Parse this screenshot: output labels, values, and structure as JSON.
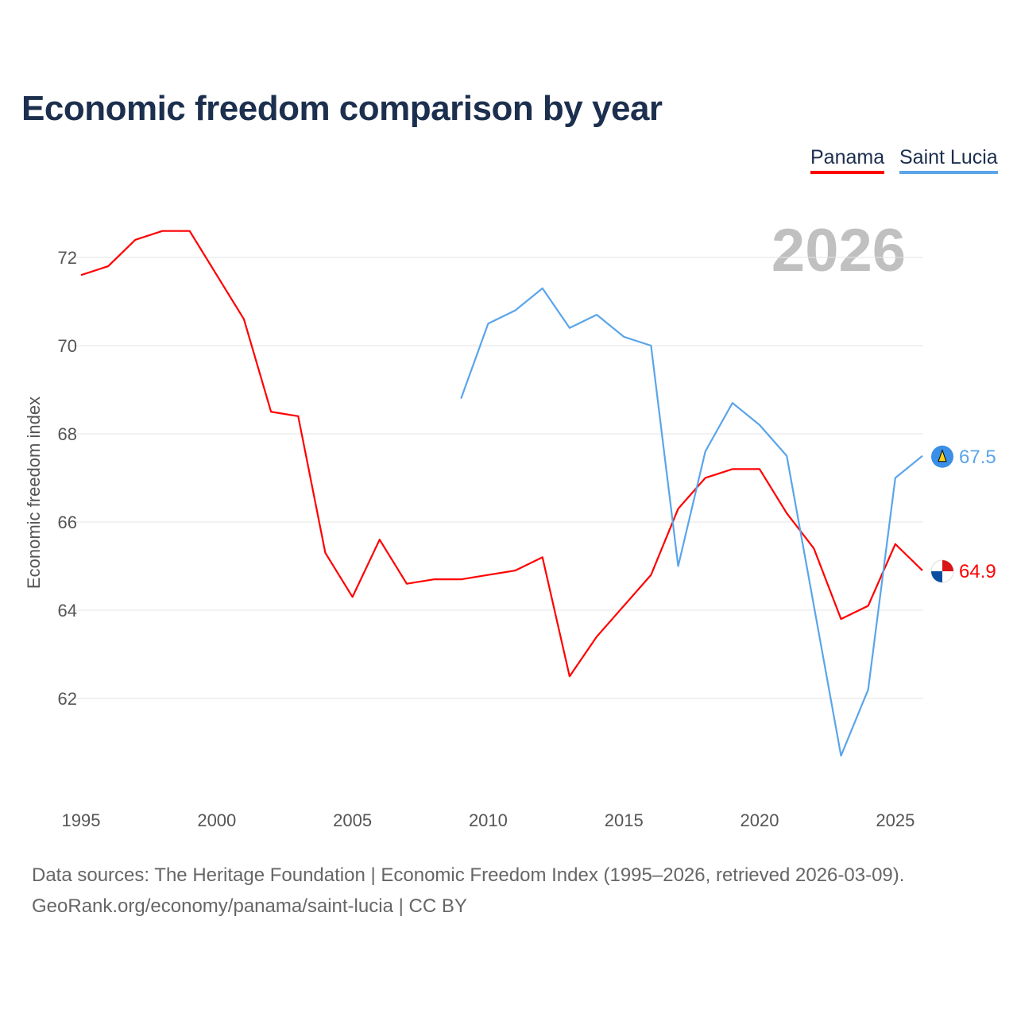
{
  "chart_data": {
    "type": "line",
    "title": "Economic freedom comparison by year",
    "xlabel": "",
    "ylabel": "Economic freedom index",
    "xlim": [
      1995,
      2026
    ],
    "ylim": [
      59.6,
      73.2
    ],
    "yticks": [
      62,
      64,
      66,
      68,
      70,
      72
    ],
    "xticks": [
      1995,
      2000,
      2005,
      2010,
      2015,
      2020,
      2025
    ],
    "grid": true,
    "legend_position": "top-right",
    "current_year_label": "2026",
    "series": [
      {
        "name": "Panama",
        "color": "#ff0000",
        "end_label": "64.9",
        "x": [
          1995,
          1996,
          1997,
          1998,
          1999,
          2000,
          2001,
          2002,
          2003,
          2004,
          2005,
          2006,
          2007,
          2008,
          2009,
          2010,
          2011,
          2012,
          2013,
          2014,
          2015,
          2016,
          2017,
          2018,
          2019,
          2020,
          2021,
          2022,
          2023,
          2024,
          2025,
          2026
        ],
        "values": [
          71.6,
          71.8,
          72.4,
          72.6,
          72.6,
          71.6,
          70.6,
          68.5,
          68.4,
          65.3,
          64.3,
          65.6,
          64.6,
          64.7,
          64.7,
          64.8,
          64.9,
          65.2,
          62.5,
          63.4,
          64.1,
          64.8,
          66.3,
          67.0,
          67.2,
          67.2,
          66.2,
          65.4,
          63.8,
          64.1,
          65.5,
          64.9
        ]
      },
      {
        "name": "Saint Lucia",
        "color": "#5aa5ea",
        "end_label": "67.5",
        "x": [
          2009,
          2010,
          2011,
          2012,
          2013,
          2014,
          2015,
          2016,
          2017,
          2018,
          2019,
          2020,
          2021,
          2022,
          2023,
          2024,
          2025,
          2026
        ],
        "values": [
          68.8,
          70.5,
          70.8,
          71.3,
          70.4,
          70.7,
          70.2,
          70.0,
          65.0,
          67.6,
          68.7,
          68.2,
          67.5,
          64.1,
          60.7,
          62.2,
          67.0,
          67.5
        ]
      }
    ]
  },
  "footer": {
    "line1": "Data sources: The Heritage Foundation | Economic Freedom Index (1995–2026, retrieved 2026-03-09).",
    "line2": "GeoRank.org/economy/panama/saint-lucia | CC BY"
  }
}
